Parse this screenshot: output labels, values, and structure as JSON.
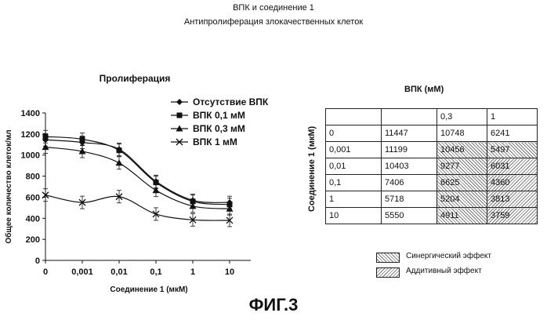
{
  "header": {
    "line1": "ВПК и соединение 1",
    "line2": "Антипролиферация  злокачественных клеток"
  },
  "figure_label": "ФИГ.3",
  "chart_data": {
    "type": "line",
    "title": "Пролиферация",
    "xlabel": "Соединение 1 (мкМ)",
    "ylabel": "Общее количество клеток/мл",
    "x_categories": [
      "0",
      "0,001",
      "0,01",
      "0,1",
      "1",
      "10"
    ],
    "ylim": [
      0,
      1400
    ],
    "yticks": [
      0,
      200,
      400,
      600,
      800,
      1000,
      1200,
      1400
    ],
    "legend_position": "top-right",
    "series": [
      {
        "name": "Отсутствие ВПК",
        "marker": "diamond",
        "values": [
          1145,
          1120,
          1055,
          750,
          570,
          550
        ]
      },
      {
        "name": "ВПК 0,1 мМ",
        "marker": "square",
        "values": [
          1175,
          1150,
          1045,
          740,
          560,
          530
        ]
      },
      {
        "name": "ВПК 0,3 мМ",
        "marker": "triangle",
        "values": [
          1075,
          1035,
          925,
          665,
          515,
          490
        ]
      },
      {
        "name": "ВПК 1 мМ",
        "marker": "x",
        "values": [
          620,
          550,
          605,
          440,
          385,
          380
        ]
      }
    ]
  },
  "table": {
    "title": "ВПК (мМ)",
    "row_axis_label": "Соединение 1 (мкМ)",
    "header": [
      "",
      "",
      "0,3",
      "1"
    ],
    "rows": [
      {
        "label": "0",
        "values": [
          "11447",
          "10748",
          "6241"
        ],
        "effects": [
          "",
          "",
          ""
        ]
      },
      {
        "label": "0,001",
        "values": [
          "11199",
          "10456",
          "5497"
        ],
        "effects": [
          "",
          "synergy",
          "synergy"
        ]
      },
      {
        "label": "0,01",
        "values": [
          "10403",
          "9277",
          "6031"
        ],
        "effects": [
          "",
          "synergy",
          "additive"
        ]
      },
      {
        "label": "0,1",
        "values": [
          "7406",
          "6625",
          "4360"
        ],
        "effects": [
          "",
          "synergy",
          "additive"
        ]
      },
      {
        "label": "1",
        "values": [
          "5718",
          "5204",
          "3813"
        ],
        "effects": [
          "",
          "synergy",
          "additive"
        ]
      },
      {
        "label": "10",
        "values": [
          "5550",
          "4911",
          "3759"
        ],
        "effects": [
          "",
          "synergy",
          "additive"
        ]
      }
    ],
    "legend": {
      "synergy": "Синергический эффект",
      "additive": "Аддитивный эффект"
    }
  }
}
